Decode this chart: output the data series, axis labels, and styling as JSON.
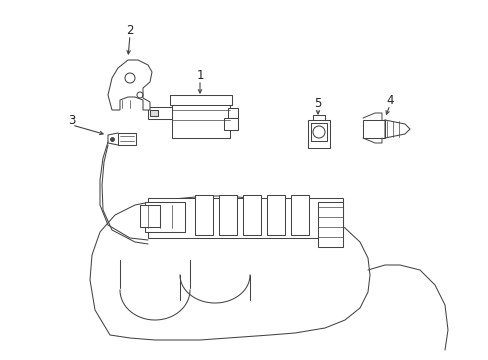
{
  "bg_color": "#ffffff",
  "line_color": "#444444",
  "label_color": "#222222",
  "figsize": [
    4.89,
    3.6
  ],
  "dpi": 100,
  "lw": 0.75,
  "label_fs": 8.5
}
